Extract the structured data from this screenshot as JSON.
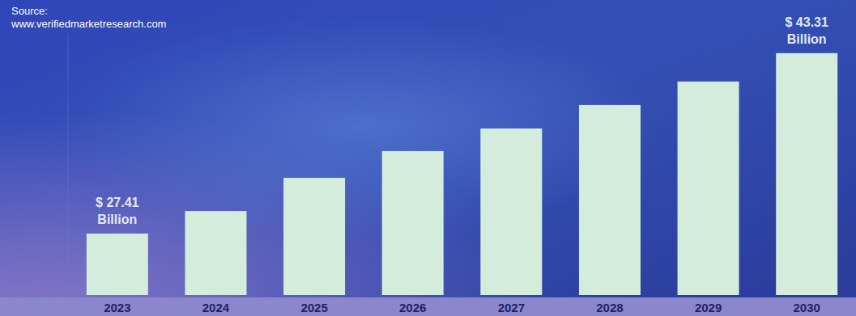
{
  "chart_data": {
    "type": "bar",
    "annotations": [
      "Source:",
      "www.verifiedmarketresearch.com"
    ],
    "categories": [
      "2023",
      "2024",
      "2025",
      "2026",
      "2027",
      "2028",
      "2029",
      "2030"
    ],
    "values": [
      27.41,
      29.4,
      32.32,
      34.68,
      36.67,
      38.74,
      40.81,
      43.31
    ],
    "value_labels": [
      "$ 27.41 Billion",
      null,
      null,
      null,
      null,
      null,
      null,
      "$ 43.31 Billion"
    ],
    "data_labels": true,
    "color": "#d3ecdb",
    "ylim": [
      22,
      45
    ],
    "yticks": [],
    "tick_labels": "x",
    "grid": false
  }
}
